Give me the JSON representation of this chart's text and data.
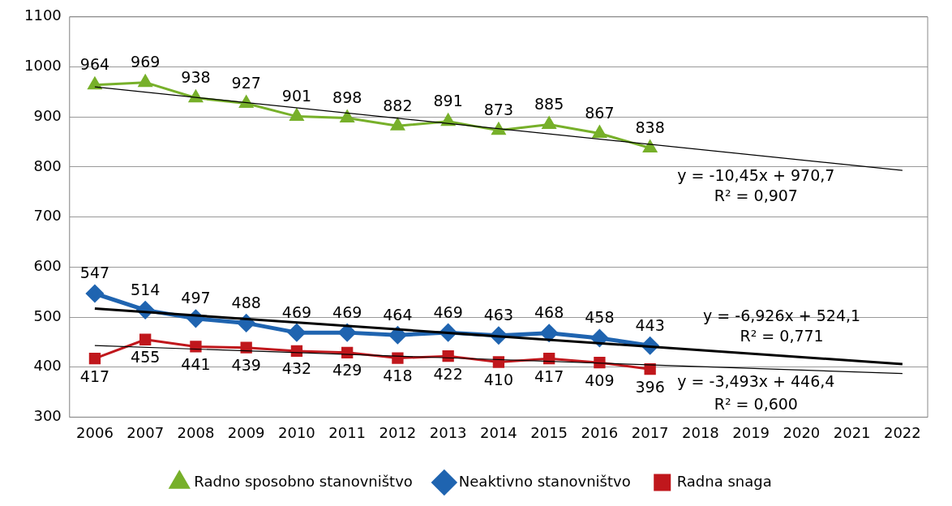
{
  "chart_data": {
    "type": "line",
    "categories": [
      "2006",
      "2007",
      "2008",
      "2009",
      "2010",
      "2011",
      "2012",
      "2013",
      "2014",
      "2015",
      "2016",
      "2017",
      "2018",
      "2019",
      "2020",
      "2021",
      "2022"
    ],
    "ylim": [
      300,
      1100
    ],
    "yticks": [
      300,
      400,
      500,
      600,
      700,
      800,
      900,
      1000,
      1100
    ],
    "grid": "y",
    "legend": "bottom",
    "series": [
      {
        "name": "Radno sposobno stanovništvo",
        "color": "#77b02a",
        "marker": "triangle",
        "values": [
          964,
          969,
          938,
          927,
          901,
          898,
          882,
          891,
          873,
          885,
          867,
          838,
          null,
          null,
          null,
          null,
          null
        ],
        "value_labels": [
          "964",
          "969",
          "938",
          "927",
          "901",
          "898",
          "882",
          "891",
          "873",
          "885",
          "867",
          "838",
          null,
          null,
          null,
          null,
          null
        ]
      },
      {
        "name": "Neaktivno stanovništvo",
        "color": "#1f64b0",
        "marker": "diamond",
        "values": [
          547,
          514,
          497,
          488,
          469,
          469,
          464,
          469,
          463,
          468,
          458,
          443,
          null,
          null,
          null,
          null,
          null
        ],
        "value_labels": [
          "547",
          "514",
          "497",
          "488",
          "469",
          "469",
          "464",
          "469",
          "463",
          "468",
          "458",
          "443",
          null,
          null,
          null,
          null,
          null
        ]
      },
      {
        "name": "Radna snaga",
        "color": "#c0171c",
        "marker": "square",
        "values": [
          417,
          455,
          441,
          439,
          432,
          429,
          418,
          422,
          410,
          417,
          409,
          396,
          null,
          null,
          null,
          null,
          null
        ],
        "value_labels": [
          "417",
          "455",
          "441",
          "439",
          "432",
          "429",
          "418",
          "422",
          "410",
          "417",
          "409",
          "396",
          null,
          null,
          null,
          null,
          null
        ]
      },
      {
        "type": "line",
        "color": "#000000",
        "marker": "none",
        "values": [
          960,
          null,
          null,
          null,
          null,
          null,
          null,
          null,
          null,
          null,
          null,
          null,
          null,
          null,
          null,
          null,
          793
        ]
      },
      {
        "type": "line",
        "color": "#000000",
        "marker": "none",
        "values": [
          517,
          null,
          null,
          null,
          null,
          null,
          null,
          null,
          null,
          null,
          null,
          null,
          null,
          null,
          null,
          null,
          406
        ]
      },
      {
        "type": "line",
        "color": "#000000",
        "marker": "none",
        "values": [
          443,
          null,
          null,
          null,
          null,
          null,
          null,
          null,
          null,
          null,
          null,
          null,
          null,
          null,
          null,
          null,
          387
        ]
      }
    ],
    "annotations": [
      "y = -10,45x + 970,7",
      "R² = 0,907",
      "y = -6,926x + 524,1",
      "R² = 0,771",
      "y = -3,493x + 446,4",
      "R² = 0,600"
    ]
  }
}
